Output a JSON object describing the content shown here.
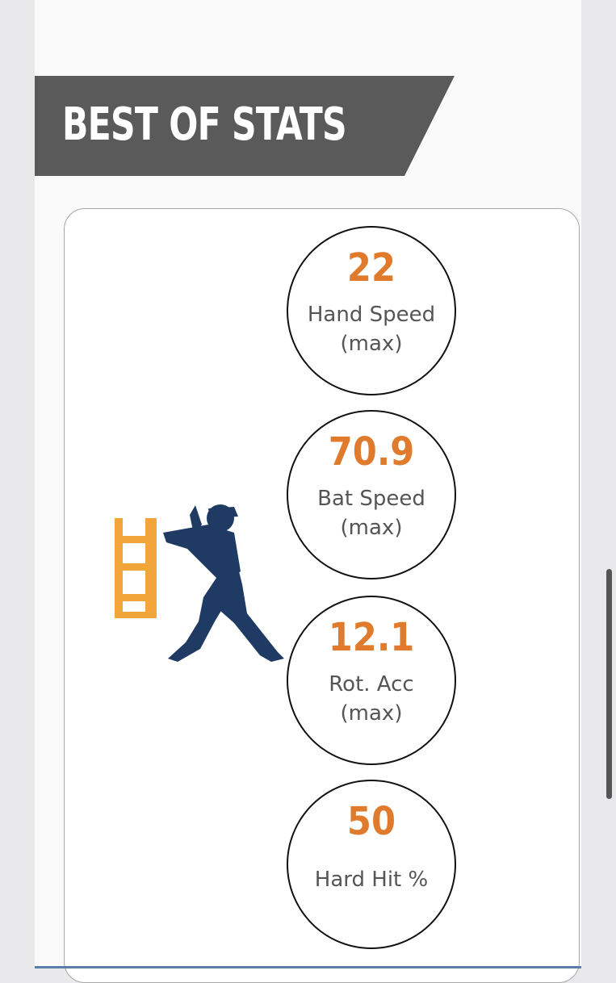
{
  "banner": {
    "title": "BEST OF STATS"
  },
  "logo": {
    "text": "HIT",
    "text_color": "#f2a53a",
    "silhouette_color": "#1f3b63"
  },
  "stats": [
    {
      "value": "22",
      "label_line1": "Hand Speed",
      "label_line2": "(max)"
    },
    {
      "value": "70.9",
      "label_line1": "Bat Speed",
      "label_line2": "(max)"
    },
    {
      "value": "12.1",
      "label_line1": "Rot. Acc",
      "label_line2": "(max)"
    },
    {
      "value": "50",
      "label_line1": "Hard Hit %",
      "label_line2": ""
    }
  ],
  "colors": {
    "accent": "#e07a2c",
    "banner": "#5a5a5a"
  }
}
